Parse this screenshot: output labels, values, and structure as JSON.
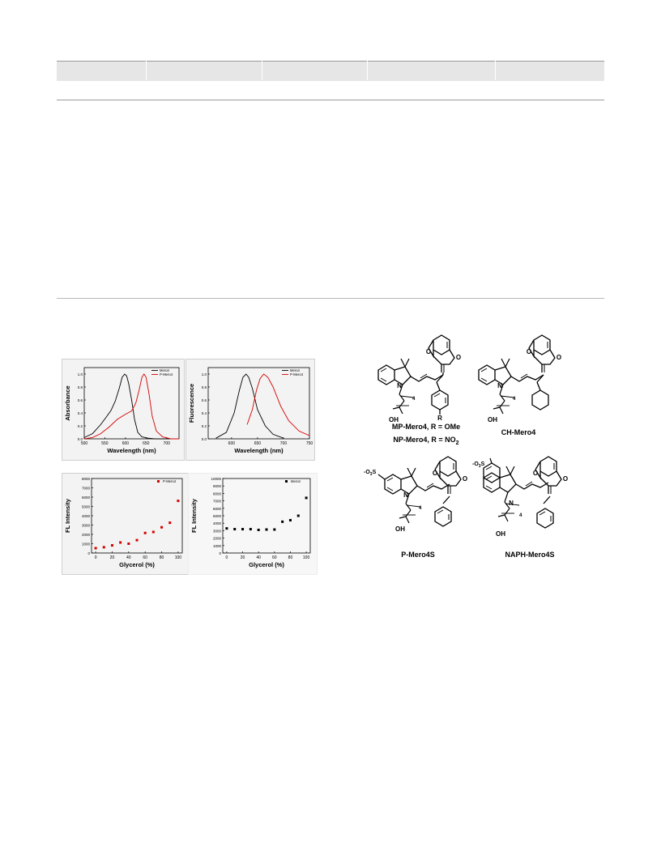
{
  "chart_data": [
    {
      "type": "line",
      "ylabel": "Absorbance",
      "xlabel": "Wavelength (nm)",
      "xlim": [
        500,
        730
      ],
      "ylim": [
        0,
        1.1
      ],
      "xticks": [
        "500",
        "550",
        "600",
        "650",
        "700"
      ],
      "yticks": [
        "0.0",
        "0.2",
        "0.4",
        "0.6",
        "0.8",
        "1.0"
      ],
      "legend": "top-right",
      "series": [
        {
          "name": "Mero4",
          "color": "#000000",
          "x": [
            500,
            520,
            540,
            555,
            565,
            575,
            585,
            592,
            598,
            603,
            608,
            615,
            622,
            630,
            640,
            655,
            670,
            700,
            730
          ],
          "y": [
            0.02,
            0.08,
            0.22,
            0.35,
            0.44,
            0.58,
            0.78,
            0.95,
            1.0,
            0.97,
            0.85,
            0.6,
            0.3,
            0.1,
            0.03,
            0.01,
            0.0,
            0.0,
            0.0
          ]
        },
        {
          "name": "P-Mero4",
          "color": "#d40000",
          "x": [
            500,
            520,
            540,
            560,
            580,
            600,
            615,
            625,
            633,
            640,
            645,
            650,
            657,
            665,
            675,
            690,
            710,
            730
          ],
          "y": [
            0.0,
            0.02,
            0.08,
            0.18,
            0.3,
            0.38,
            0.43,
            0.55,
            0.75,
            0.95,
            1.0,
            0.95,
            0.7,
            0.35,
            0.12,
            0.03,
            0.0,
            0.0
          ]
        }
      ]
    },
    {
      "type": "line",
      "ylabel": "Fluorescence",
      "xlabel": "Wavelength (nm)",
      "xlim": [
        555,
        750
      ],
      "ylim": [
        0,
        1.1
      ],
      "xticks": [
        "600",
        "650",
        "700",
        "750"
      ],
      "yticks": [
        "0.0",
        "0.2",
        "0.4",
        "0.6",
        "0.8",
        "1.0"
      ],
      "legend": "top-right",
      "series": [
        {
          "name": "Mero4",
          "color": "#000000",
          "x": [
            570,
            590,
            605,
            615,
            622,
            628,
            633,
            640,
            650,
            665,
            680,
            700
          ],
          "y": [
            0.01,
            0.1,
            0.4,
            0.75,
            0.95,
            1.0,
            0.95,
            0.78,
            0.45,
            0.2,
            0.07,
            0.01
          ]
        },
        {
          "name": "P-Mero4",
          "color": "#d40000",
          "x": [
            630,
            640,
            648,
            655,
            662,
            670,
            680,
            695,
            710,
            730,
            750
          ],
          "y": [
            0.22,
            0.45,
            0.75,
            0.93,
            1.0,
            0.95,
            0.8,
            0.5,
            0.28,
            0.12,
            0.05
          ]
        }
      ]
    },
    {
      "type": "scatter",
      "ylabel": "FL Intensity",
      "xlabel": "Glycerol (%)",
      "xlim": [
        -5,
        105
      ],
      "ylim": [
        0,
        8000
      ],
      "xticks": [
        "0",
        "20",
        "40",
        "60",
        "80",
        "100"
      ],
      "yticks": [
        "0",
        "1000",
        "2000",
        "3000",
        "4000",
        "5000",
        "6000",
        "7000",
        "8000"
      ],
      "legend": "top-right",
      "series": [
        {
          "name": "P-Mero4",
          "color": "#d40000",
          "x": [
            0,
            10,
            20,
            30,
            40,
            50,
            60,
            70,
            80,
            90,
            100
          ],
          "y": [
            520,
            620,
            820,
            1130,
            1000,
            1380,
            2150,
            2260,
            2760,
            3250,
            5600
          ]
        }
      ]
    },
    {
      "type": "scatter",
      "ylabel": "FL Intensity",
      "xlabel": "Glycerol (%)",
      "xlim": [
        -5,
        105
      ],
      "ylim": [
        0,
        10000
      ],
      "xticks": [
        "0",
        "20",
        "40",
        "60",
        "80",
        "100"
      ],
      "yticks": [
        "0",
        "1000",
        "2000",
        "3000",
        "4000",
        "5000",
        "6000",
        "7000",
        "8000",
        "9000",
        "10000"
      ],
      "legend": "top-right",
      "series": [
        {
          "name": "Mero4",
          "color": "#000000",
          "x": [
            0,
            10,
            20,
            30,
            40,
            50,
            60,
            70,
            80,
            90,
            100
          ],
          "y": [
            3300,
            3200,
            3200,
            3200,
            3100,
            3150,
            3150,
            4200,
            4400,
            5000,
            7400
          ]
        }
      ]
    }
  ],
  "structures": {
    "mp_label_1": "MP-Mero4, R = OMe",
    "mp_label_2_prefix": "NP-Mero4, R = NO",
    "mp_label_2_sub": "2",
    "ch_label": "CH-Mero4",
    "p4s_label": "P-Mero4S",
    "naph_label": "NAPH-Mero4S",
    "atom_N": "N",
    "atom_O": "O",
    "atom_OH": "OH",
    "atom_R": "R",
    "sub_4": "4",
    "so3_prefix": "-O",
    "so3_sub": "3",
    "so3_suffix": "S"
  }
}
